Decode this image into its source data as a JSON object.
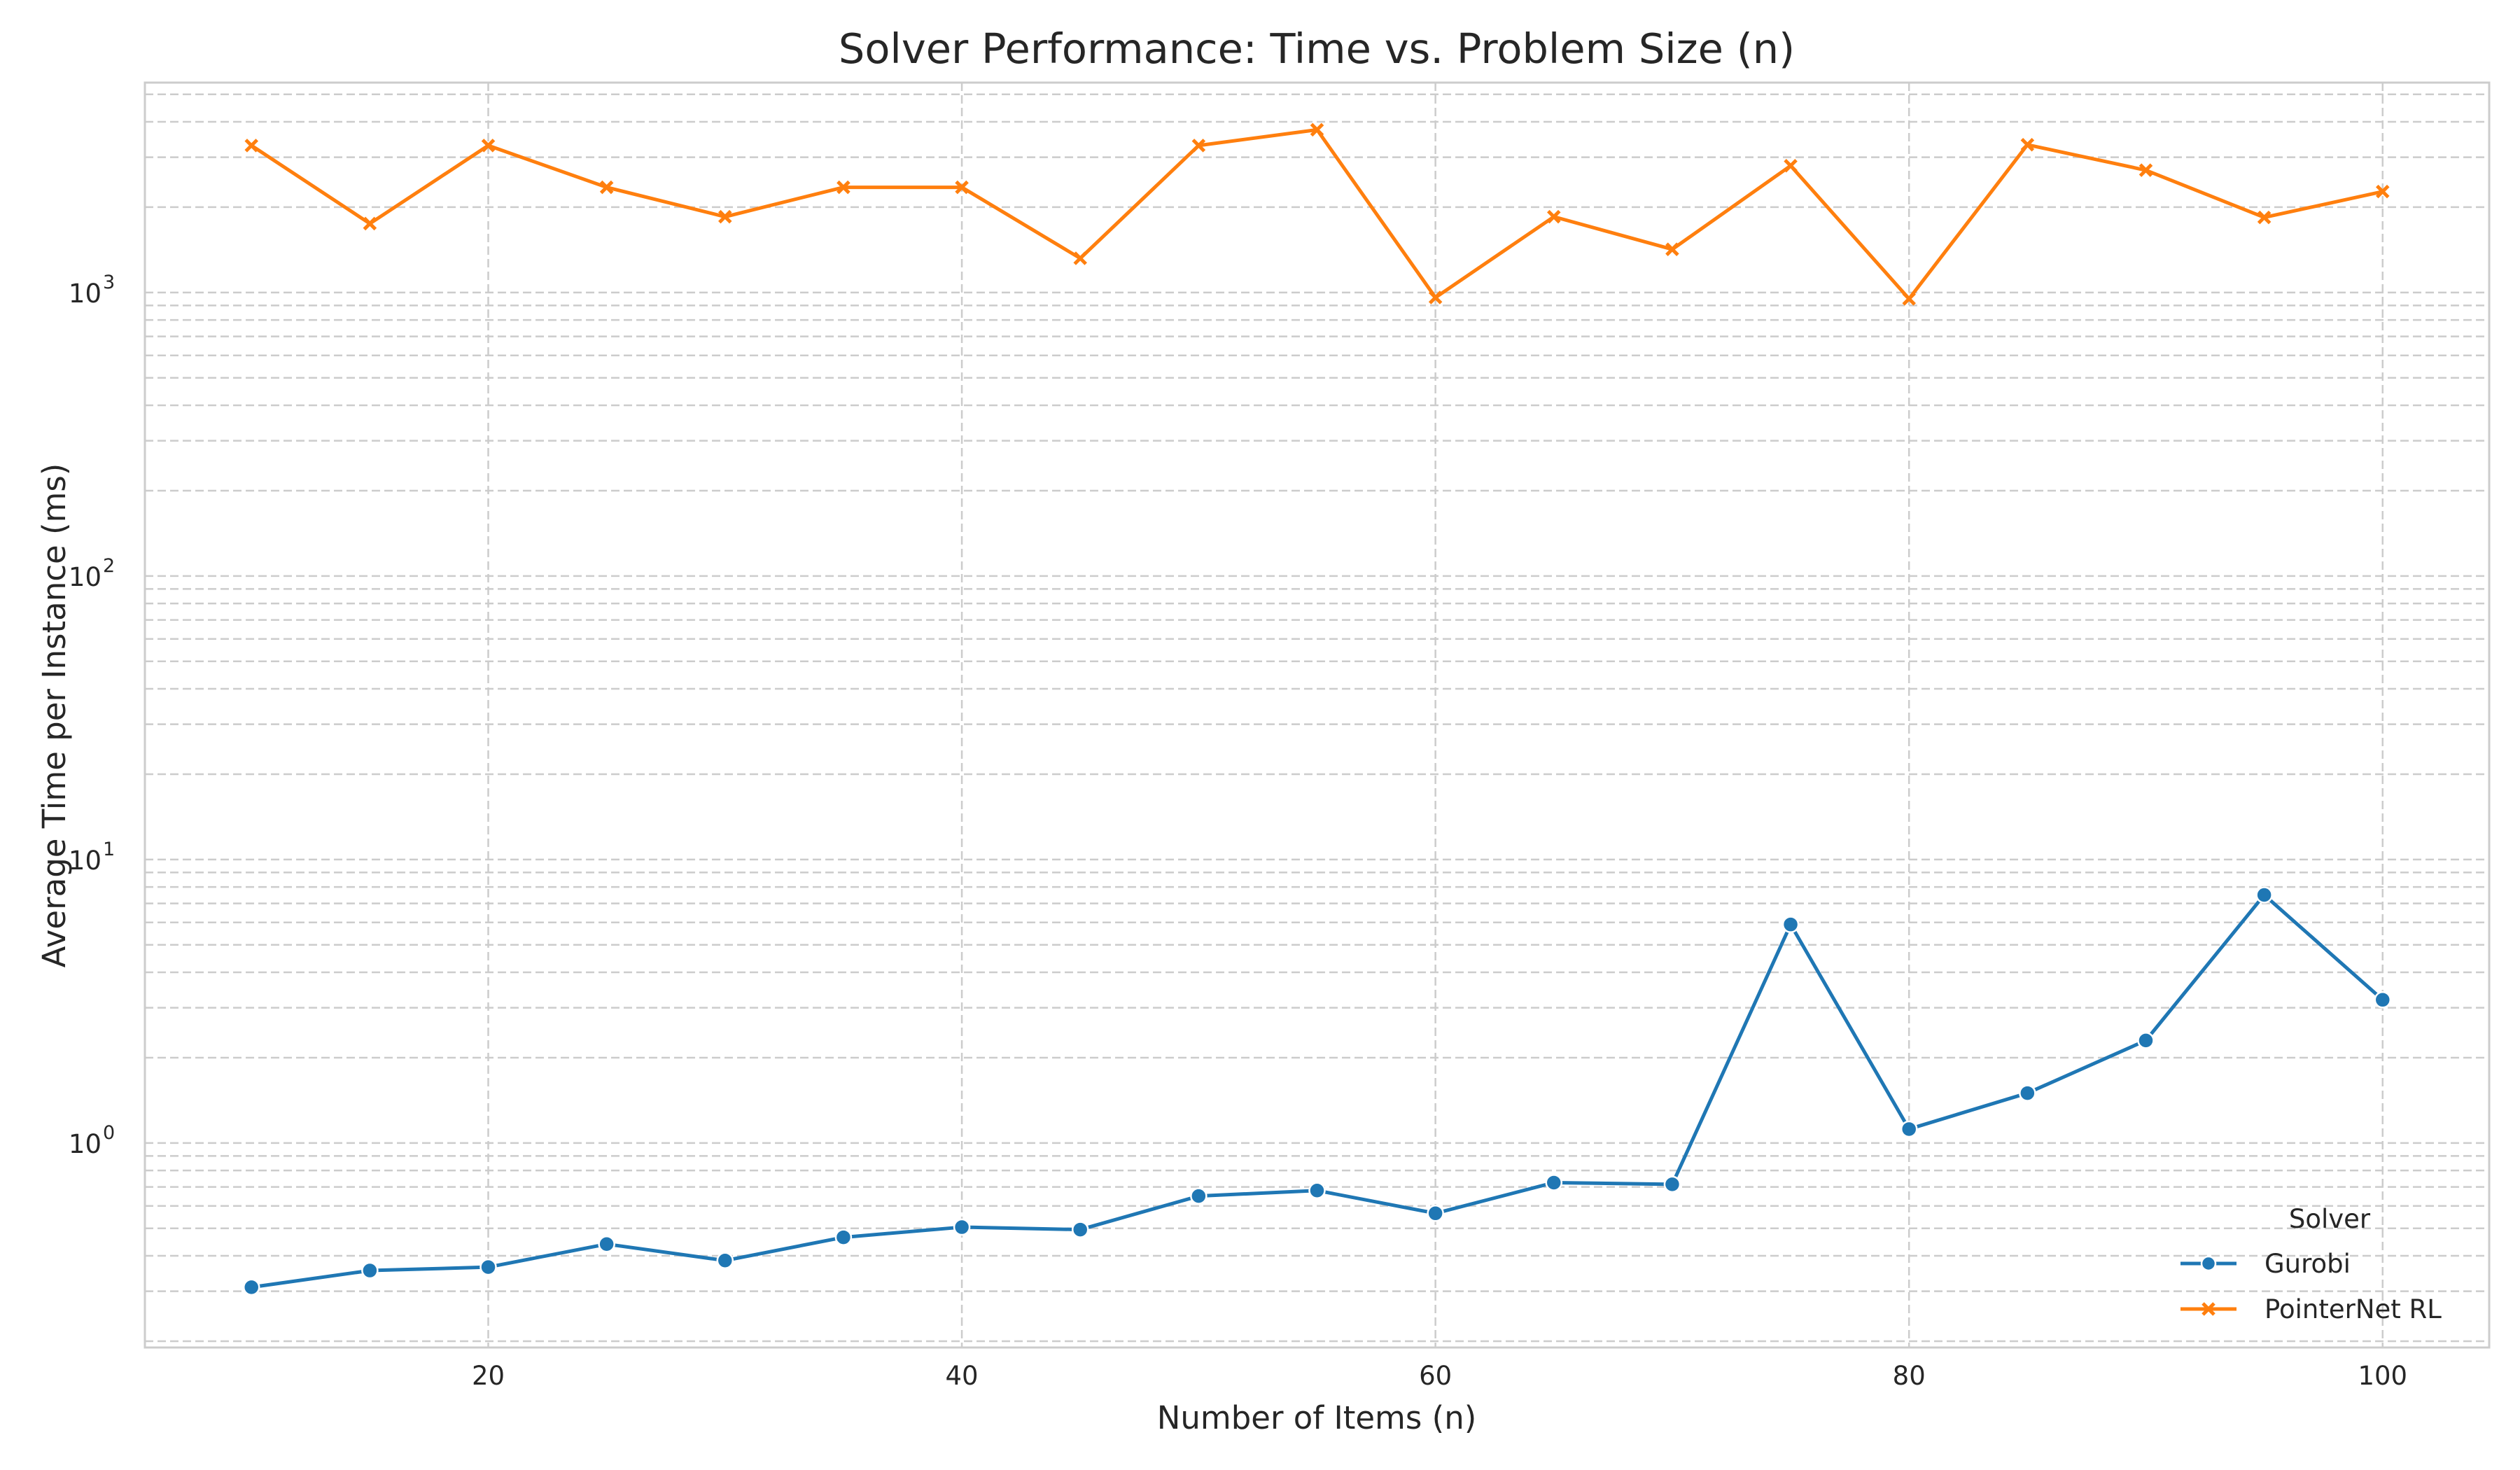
{
  "chart_data": {
    "type": "line",
    "title": "Solver Performance: Time vs. Problem Size (n)",
    "xlabel": "Number of Items (n)",
    "ylabel": "Average Time per Instance (ms)",
    "yscale": "log",
    "xlim": [
      5.5,
      104.5
    ],
    "ylim": [
      0.19,
      5500
    ],
    "x_ticks": [
      20,
      40,
      60,
      80,
      100
    ],
    "y_ticks": [
      {
        "value": 1,
        "base": "10",
        "exp": "0"
      },
      {
        "value": 10,
        "base": "10",
        "exp": "1"
      },
      {
        "value": 100,
        "base": "10",
        "exp": "2"
      },
      {
        "value": 1000,
        "base": "10",
        "exp": "3"
      }
    ],
    "grid": true,
    "x": [
      10,
      15,
      20,
      25,
      30,
      35,
      40,
      45,
      50,
      55,
      60,
      65,
      70,
      75,
      80,
      85,
      90,
      95,
      100
    ],
    "series": [
      {
        "name": "Gurobi",
        "color": "#1f77b4",
        "marker": "circle",
        "values": [
          0.31,
          0.355,
          0.365,
          0.44,
          0.385,
          0.465,
          0.505,
          0.495,
          0.65,
          0.68,
          0.565,
          0.725,
          0.715,
          5.9,
          1.12,
          1.5,
          2.3,
          7.5,
          3.2
        ]
      },
      {
        "name": "PointerNet RL",
        "color": "#ff7f0e",
        "marker": "x",
        "values": [
          3300,
          1750,
          3300,
          2350,
          1850,
          2350,
          2350,
          1320,
          3300,
          3750,
          960,
          1850,
          1420,
          2800,
          950,
          3320,
          2700,
          1840,
          2270
        ]
      }
    ],
    "legend": {
      "title": "Solver",
      "position": "lower-right"
    }
  }
}
